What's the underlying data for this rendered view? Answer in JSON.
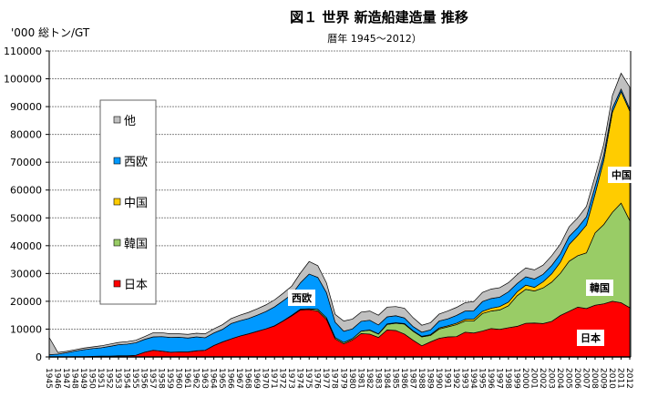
{
  "chart_data": {
    "type": "area",
    "stacked": true,
    "title": "図１ 世界 新造船建造量 推移",
    "subtitle": "暦年 1945～2012）",
    "ylabel": "'000 総トン/GT",
    "xlabel": "",
    "ylim": [
      0,
      110000
    ],
    "yticks": [
      0,
      10000,
      20000,
      30000,
      40000,
      50000,
      60000,
      70000,
      80000,
      90000,
      100000,
      110000
    ],
    "grid": true,
    "legend_position": "upper-left inside",
    "x": [
      1945,
      1946,
      1947,
      1948,
      1949,
      1950,
      1951,
      1952,
      1953,
      1954,
      1955,
      1956,
      1957,
      1958,
      1959,
      1960,
      1961,
      1962,
      1963,
      1964,
      1965,
      1966,
      1967,
      1968,
      1969,
      1970,
      1971,
      1972,
      1973,
      1974,
      1975,
      1976,
      1977,
      1978,
      1979,
      1980,
      1981,
      1982,
      1983,
      1984,
      1985,
      1986,
      1987,
      1988,
      1989,
      1990,
      1991,
      1992,
      1993,
      1994,
      1995,
      1996,
      1997,
      1998,
      1999,
      2000,
      2001,
      2002,
      2003,
      2004,
      2005,
      2006,
      2007,
      2008,
      2009,
      2010,
      2011,
      2012
    ],
    "series": [
      {
        "name": "日本",
        "color": "#ff0000",
        "values": [
          0,
          0,
          0,
          100,
          100,
          200,
          300,
          300,
          400,
          400,
          600,
          1700,
          2400,
          2100,
          1700,
          1800,
          1800,
          2200,
          2400,
          4100,
          5400,
          6500,
          7500,
          8300,
          9200,
          10100,
          11100,
          12900,
          14800,
          16900,
          17000,
          16500,
          13500,
          6500,
          4700,
          6100,
          8400,
          8200,
          7000,
          9700,
          9500,
          8200,
          6000,
          4000,
          5400,
          6700,
          7200,
          7300,
          8900,
          8600,
          9300,
          10200,
          9900,
          10500,
          11000,
          12100,
          12200,
          12000,
          12800,
          14900,
          16400,
          17900,
          17400,
          18600,
          19100,
          20000,
          19500,
          17700
        ]
      },
      {
        "name": "韓国",
        "color": "#99cc66",
        "values": [
          0,
          0,
          0,
          0,
          0,
          0,
          0,
          0,
          0,
          0,
          0,
          0,
          0,
          0,
          0,
          0,
          0,
          0,
          0,
          0,
          0,
          0,
          0,
          0,
          0,
          0,
          100,
          100,
          200,
          300,
          300,
          600,
          600,
          500,
          500,
          500,
          900,
          1400,
          1200,
          2000,
          2600,
          3600,
          3200,
          3200,
          2300,
          3300,
          3600,
          4300,
          4000,
          4300,
          6300,
          6300,
          7000,
          7900,
          11000,
          12200,
          11500,
          12800,
          14100,
          15200,
          18000,
          18500,
          20000,
          26000,
          28500,
          32000,
          35800,
          31300
        ]
      },
      {
        "name": "中国",
        "color": "#ffcc00",
        "values": [
          0,
          0,
          0,
          0,
          0,
          0,
          0,
          0,
          0,
          0,
          0,
          0,
          0,
          0,
          0,
          0,
          0,
          0,
          0,
          0,
          0,
          0,
          0,
          0,
          0,
          0,
          0,
          0,
          0,
          0,
          0,
          0,
          0,
          0,
          0,
          0,
          0,
          100,
          100,
          200,
          200,
          200,
          200,
          200,
          300,
          400,
          400,
          500,
          600,
          700,
          800,
          1000,
          1200,
          1300,
          1400,
          1500,
          1300,
          2200,
          3000,
          4000,
          6000,
          7300,
          10000,
          14000,
          23000,
          36000,
          40000,
          39400
        ]
      },
      {
        "name": "西欧",
        "color": "#0099ff",
        "values": [
          800,
          1000,
          1500,
          2000,
          2500,
          2800,
          3000,
          3500,
          4000,
          4200,
          4500,
          4600,
          4800,
          5200,
          5300,
          5300,
          5000,
          5000,
          4500,
          4500,
          4500,
          5500,
          5500,
          5500,
          5800,
          6200,
          6800,
          7200,
          7500,
          9500,
          12500,
          11500,
          9000,
          5500,
          4000,
          3500,
          3500,
          3500,
          3200,
          2500,
          2500,
          2000,
          1500,
          1500,
          1700,
          2500,
          2500,
          2800,
          3000,
          3000,
          3500,
          3500,
          3400,
          3700,
          3000,
          3000,
          3000,
          2700,
          3000,
          3000,
          2900,
          2800,
          3000,
          2700,
          2000,
          1500,
          1000,
          800
        ]
      },
      {
        "name": "他",
        "color": "#c0c0c0",
        "values": [
          6200,
          600,
          500,
          500,
          600,
          600,
          700,
          800,
          800,
          900,
          900,
          1000,
          1500,
          1400,
          1300,
          1200,
          1300,
          1300,
          1400,
          1500,
          1700,
          1800,
          2000,
          2200,
          2300,
          2400,
          2500,
          2700,
          3000,
          3500,
          4500,
          4200,
          3500,
          2800,
          3700,
          3500,
          3300,
          3300,
          3500,
          3500,
          3300,
          3500,
          3200,
          2500,
          2600,
          2500,
          2800,
          2900,
          3000,
          3300,
          3300,
          3400,
          3400,
          3300,
          3200,
          3200,
          3300,
          3300,
          3500,
          3500,
          3500,
          3500,
          3700,
          3700,
          3800,
          4500,
          5700,
          7800
        ]
      }
    ],
    "legend": [
      "他",
      "西欧",
      "中国",
      "韓国",
      "日本"
    ],
    "annotations": [
      "西欧",
      "中国",
      "韓国",
      "日本"
    ]
  }
}
